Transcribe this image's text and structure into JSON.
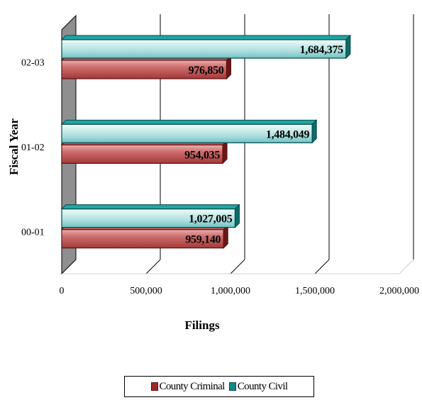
{
  "chart_data": {
    "type": "bar",
    "orientation": "horizontal",
    "three_d": true,
    "categories": [
      "00-01",
      "01-02",
      "02-03"
    ],
    "series": [
      {
        "name": "County Criminal",
        "values": [
          959140,
          954035,
          976850
        ],
        "value_labels": [
          "959,140",
          "954,035",
          "976,850"
        ],
        "color": "#9c2a2a"
      },
      {
        "name": "County Civil",
        "values": [
          1027005,
          1484049,
          1684375
        ],
        "value_labels": [
          "1,027,005",
          "1,484,049",
          "1,684,375"
        ],
        "color": "#0f8a8a"
      }
    ],
    "xlabel": "Filings",
    "ylabel": "Fiscal Year",
    "xlim": [
      0,
      2000000
    ],
    "xticks": [
      0,
      500000,
      1000000,
      1500000,
      2000000
    ],
    "xtick_labels": [
      "0",
      "500,000",
      "1,000,000",
      "1,500,000",
      "2,000,000"
    ],
    "grid": "vertical",
    "legend_position": "bottom"
  }
}
